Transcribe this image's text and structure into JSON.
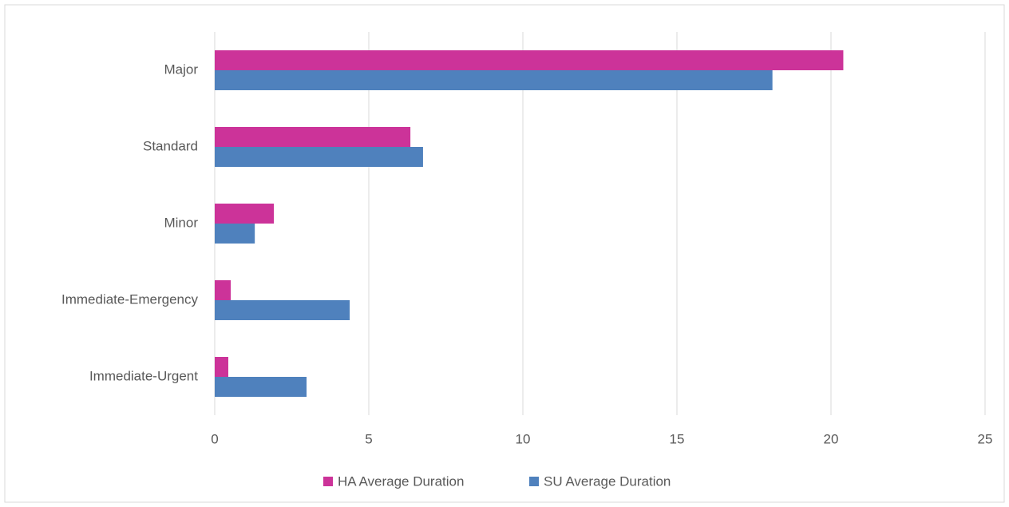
{
  "chart_data": {
    "type": "hbar",
    "categories": [
      "Major",
      "Standard",
      "Minor",
      "Immediate-Emergency",
      "Immediate-Urgent"
    ],
    "series": [
      {
        "name": "HA Average Duration",
        "color": "#cc3399",
        "values": [
          20.4,
          6.35,
          1.92,
          0.52,
          0.44
        ]
      },
      {
        "name": "SU Average Duration",
        "color": "#4f81bd",
        "values": [
          18.1,
          6.76,
          1.3,
          4.38,
          2.98
        ]
      }
    ],
    "xlim": [
      0,
      25
    ],
    "xticks": [
      0,
      5,
      10,
      15,
      20,
      25
    ],
    "grid": true,
    "legend": "bottom"
  }
}
